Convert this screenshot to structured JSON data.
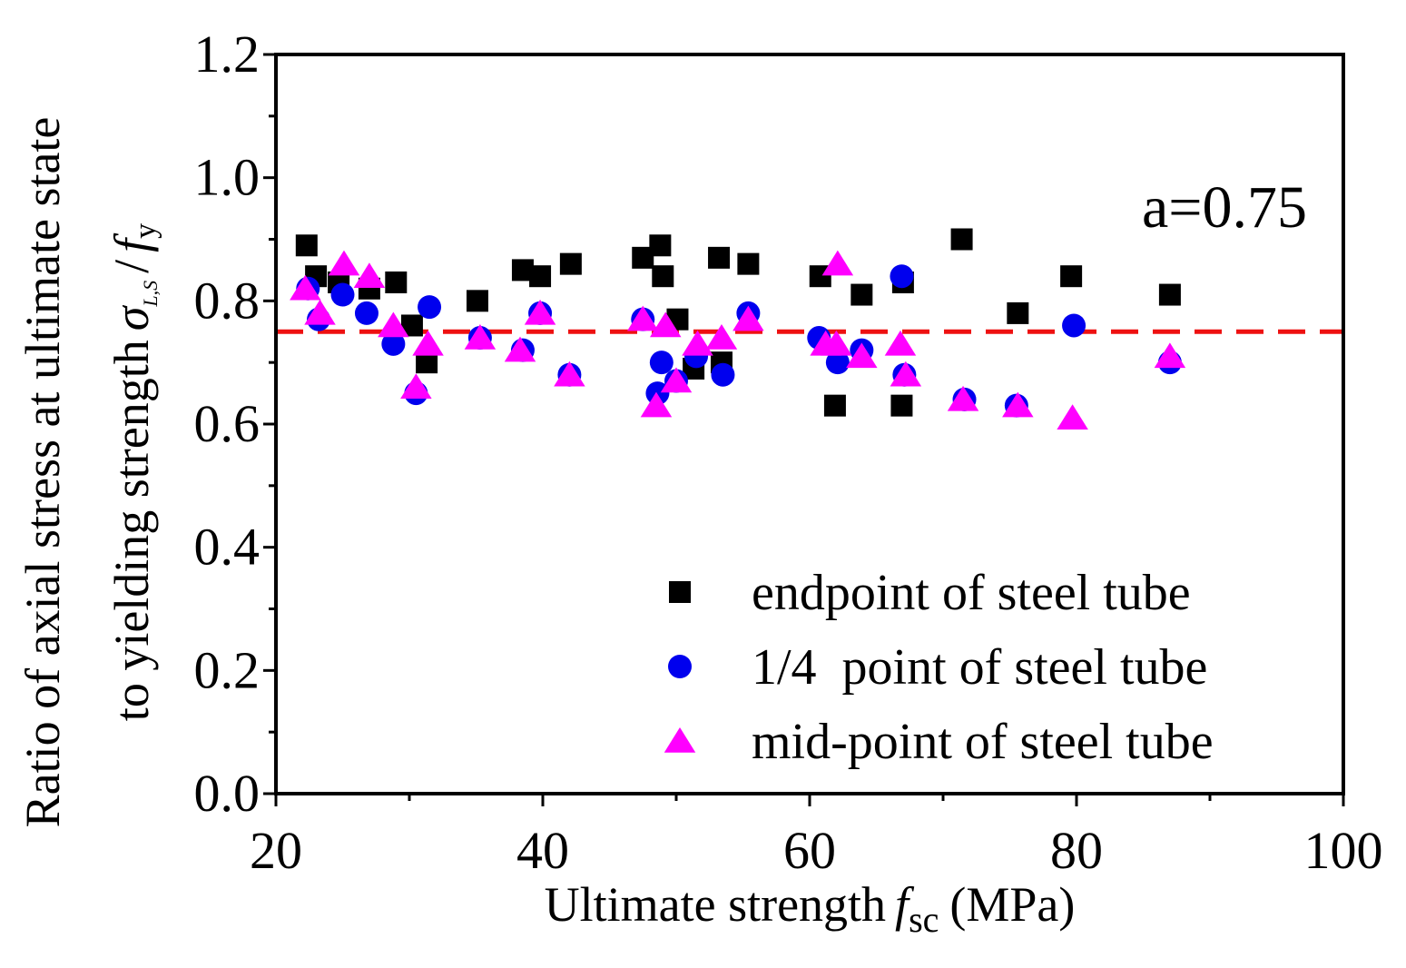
{
  "chart_data": {
    "type": "scatter",
    "title": "",
    "xlabel": {
      "main": "Ultimate strength",
      "symbol": "f",
      "sub": "sc",
      "unit": "(MPa)"
    },
    "ylabel": {
      "line1": "Ratio of axial stress at ultimate state",
      "line2": "to yielding strength",
      "sigma": "σ",
      "sigma_sub": "L,S",
      "slash": "/",
      "f": "f",
      "f_sub": "y"
    },
    "xlim": [
      20,
      100
    ],
    "ylim": [
      0.0,
      1.2
    ],
    "x_ticks": [
      20,
      40,
      60,
      80,
      100
    ],
    "x_tick_labels": [
      "20",
      "40",
      "60",
      "80",
      "100"
    ],
    "y_ticks": [
      0.0,
      0.2,
      0.4,
      0.6,
      0.8,
      1.0,
      1.2
    ],
    "y_tick_labels": [
      "0.0",
      "0.2",
      "0.4",
      "0.6",
      "0.8",
      "1.0",
      "1.2"
    ],
    "grid": false,
    "legend_position": "bottom-right",
    "annotation": "a=0.75",
    "reference_line": {
      "y": 0.75,
      "style": "dashed",
      "color": "#ee1111"
    },
    "series": [
      {
        "name": "endpoint of steel tube",
        "marker": "square",
        "color": "#000000",
        "points": [
          [
            22.3,
            0.89
          ],
          [
            23.0,
            0.84
          ],
          [
            24.7,
            0.83
          ],
          [
            27.0,
            0.82
          ],
          [
            29.0,
            0.83
          ],
          [
            30.2,
            0.76
          ],
          [
            31.3,
            0.7
          ],
          [
            35.1,
            0.8
          ],
          [
            38.5,
            0.85
          ],
          [
            39.8,
            0.84
          ],
          [
            42.1,
            0.86
          ],
          [
            47.5,
            0.87
          ],
          [
            48.8,
            0.89
          ],
          [
            49.0,
            0.84
          ],
          [
            50.1,
            0.77
          ],
          [
            51.3,
            0.69
          ],
          [
            53.2,
            0.87
          ],
          [
            53.4,
            0.7
          ],
          [
            55.4,
            0.86
          ],
          [
            60.8,
            0.84
          ],
          [
            61.9,
            0.63
          ],
          [
            63.9,
            0.81
          ],
          [
            66.9,
            0.63
          ],
          [
            67.0,
            0.83
          ],
          [
            71.4,
            0.9
          ],
          [
            75.6,
            0.78
          ],
          [
            79.6,
            0.84
          ],
          [
            87.0,
            0.81
          ]
        ]
      },
      {
        "name": "1/4  point of steel tube",
        "marker": "circle",
        "color": "#0000ee",
        "points": [
          [
            22.4,
            0.82
          ],
          [
            23.2,
            0.77
          ],
          [
            25.0,
            0.81
          ],
          [
            26.8,
            0.78
          ],
          [
            28.8,
            0.73
          ],
          [
            30.5,
            0.65
          ],
          [
            31.5,
            0.79
          ],
          [
            35.3,
            0.74
          ],
          [
            38.5,
            0.72
          ],
          [
            39.8,
            0.78
          ],
          [
            42.0,
            0.68
          ],
          [
            47.5,
            0.77
          ],
          [
            48.6,
            0.65
          ],
          [
            48.9,
            0.7
          ],
          [
            50.0,
            0.67
          ],
          [
            51.5,
            0.71
          ],
          [
            53.5,
            0.68
          ],
          [
            55.4,
            0.78
          ],
          [
            60.7,
            0.74
          ],
          [
            62.1,
            0.7
          ],
          [
            63.9,
            0.72
          ],
          [
            66.9,
            0.84
          ],
          [
            67.1,
            0.68
          ],
          [
            71.6,
            0.64
          ],
          [
            75.5,
            0.63
          ],
          [
            79.8,
            0.76
          ],
          [
            87.0,
            0.7
          ]
        ]
      },
      {
        "name": "mid-point of steel tube",
        "marker": "triangle",
        "color": "#ff00ff",
        "points": [
          [
            22.2,
            0.82
          ],
          [
            23.3,
            0.78
          ],
          [
            25.1,
            0.86
          ],
          [
            27.0,
            0.84
          ],
          [
            28.8,
            0.76
          ],
          [
            30.5,
            0.66
          ],
          [
            31.4,
            0.73
          ],
          [
            35.3,
            0.74
          ],
          [
            38.3,
            0.72
          ],
          [
            39.8,
            0.78
          ],
          [
            42.0,
            0.68
          ],
          [
            47.5,
            0.77
          ],
          [
            48.5,
            0.63
          ],
          [
            49.2,
            0.76
          ],
          [
            50.0,
            0.67
          ],
          [
            51.6,
            0.73
          ],
          [
            53.4,
            0.74
          ],
          [
            55.4,
            0.77
          ],
          [
            61.2,
            0.73
          ],
          [
            62.1,
            0.86
          ],
          [
            62.0,
            0.73
          ],
          [
            63.9,
            0.71
          ],
          [
            66.8,
            0.73
          ],
          [
            67.2,
            0.68
          ],
          [
            71.5,
            0.64
          ],
          [
            75.6,
            0.63
          ],
          [
            79.7,
            0.61
          ],
          [
            87.0,
            0.71
          ]
        ]
      }
    ]
  }
}
